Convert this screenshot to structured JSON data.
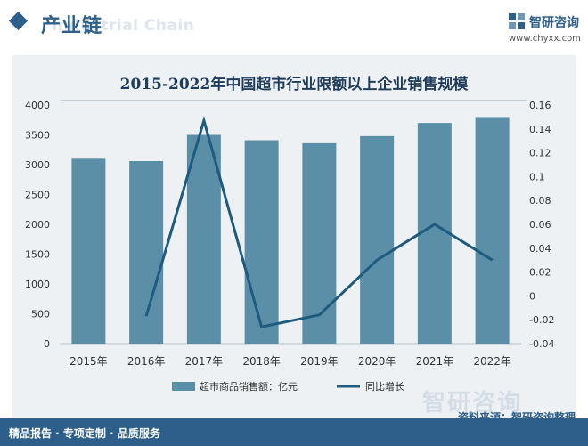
{
  "header": {
    "section_title": "产业链",
    "section_subtitle": "Industrial Chain",
    "brand_name": "智研咨询",
    "brand_url": "www.chyxx.com"
  },
  "chart_data": {
    "type": "bar+line",
    "title": "2015-2022年中国超市行业限额以上企业销售规模",
    "categories": [
      "2015年",
      "2016年",
      "2017年",
      "2018年",
      "2019年",
      "2020年",
      "2021年",
      "2022年"
    ],
    "series": [
      {
        "name": "超市商品销售额：亿元",
        "type": "bar",
        "axis": "left",
        "values": [
          3100,
          3060,
          3500,
          3410,
          3360,
          3480,
          3700,
          3800
        ]
      },
      {
        "name": "同比增长",
        "type": "line",
        "axis": "right",
        "values": [
          null,
          -0.017,
          0.147,
          -0.026,
          -0.016,
          0.03,
          0.06,
          0.03
        ]
      }
    ],
    "y_left": {
      "min": 0,
      "max": 4000,
      "step": 500,
      "ticks": [
        "0",
        "500",
        "1000",
        "1500",
        "2000",
        "2500",
        "3000",
        "3500",
        "4000"
      ]
    },
    "y_right": {
      "min": -0.04,
      "max": 0.16,
      "step": 0.02,
      "ticks": [
        "-0.04",
        "-0.02",
        "0",
        "0.02",
        "0.04",
        "0.06",
        "0.08",
        "0.1",
        "0.12",
        "0.14",
        "0.16"
      ]
    },
    "legend_position": "bottom",
    "colors": {
      "bar": "#5b8fa8",
      "line": "#1e5b7e"
    }
  },
  "footer": {
    "left_text": "精品报告 · 专项定制 · 品质服务",
    "source_text": "资料来源：智研咨询整理",
    "watermark": "智研咨询"
  }
}
